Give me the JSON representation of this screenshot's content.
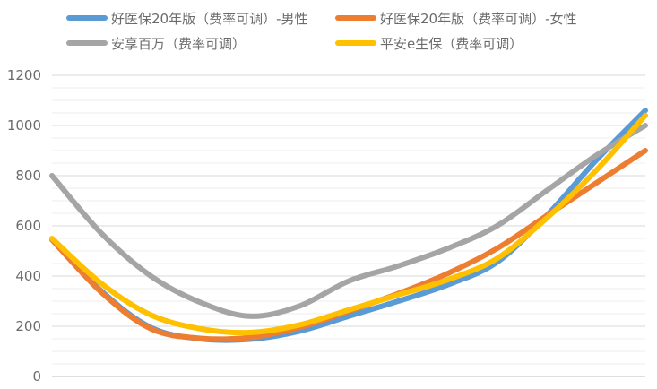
{
  "chart_data": {
    "type": "line",
    "title": "",
    "xlabel": "",
    "ylabel": "",
    "ylim": [
      0,
      1200
    ],
    "yticks": [
      0,
      200,
      400,
      600,
      800,
      1000,
      1200
    ],
    "grid": true,
    "legend_position": "top",
    "x": [
      0,
      1,
      2,
      3,
      4,
      5,
      6,
      7,
      8,
      9,
      10,
      11,
      12
    ],
    "series": [
      {
        "name": "好医保20年版（费率可调）-男性",
        "color": "#5b9bd5",
        "values": [
          545,
          340,
          195,
          150,
          148,
          180,
          240,
          300,
          365,
          455,
          640,
          860,
          1060
        ]
      },
      {
        "name": "好医保20年版（费率可调）-女性",
        "color": "#ed7d31",
        "values": [
          545,
          335,
          190,
          152,
          155,
          195,
          260,
          330,
          410,
          510,
          640,
          770,
          900
        ]
      },
      {
        "name": "安享百万（费率可调）",
        "color": "#a5a5a5",
        "values": [
          800,
          570,
          400,
          295,
          240,
          280,
          380,
          440,
          510,
          600,
          740,
          880,
          1000
        ]
      },
      {
        "name": "平安e生保（费率可调）",
        "color": "#ffc000",
        "values": [
          550,
          370,
          245,
          190,
          175,
          205,
          265,
          325,
          385,
          470,
          630,
          820,
          1040
        ]
      }
    ]
  }
}
